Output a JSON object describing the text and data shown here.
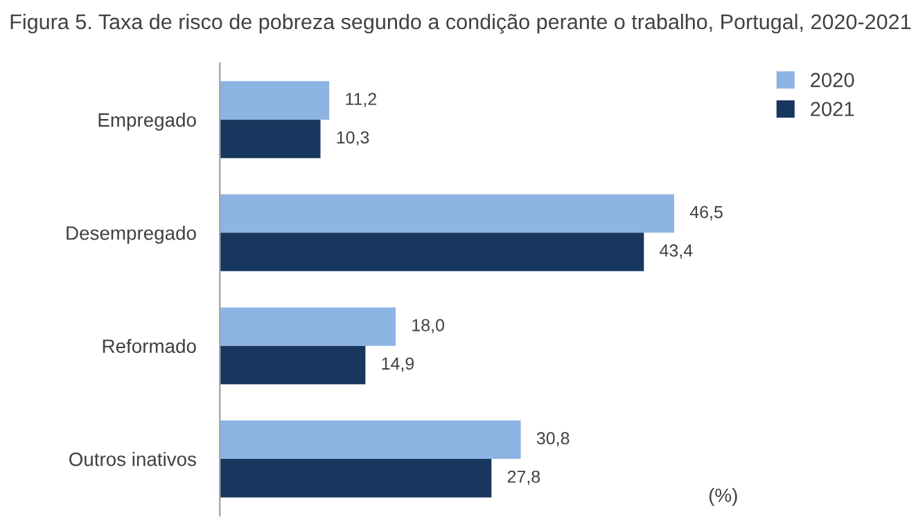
{
  "chart_data": {
    "type": "bar",
    "orientation": "horizontal",
    "title": "Figura 5. Taxa de risco de pobreza segundo a condição perante o trabalho, Portugal, 2020-2021",
    "categories": [
      "Empregado",
      "Desempregado",
      "Reformado",
      "Outros inativos"
    ],
    "series": [
      {
        "name": "2020",
        "color": "#8eb4e3",
        "values": [
          11.2,
          46.5,
          18.0,
          30.8
        ],
        "value_labels": [
          "11,2",
          "46,5",
          "18,0",
          "30,8"
        ]
      },
      {
        "name": "2021",
        "color": "#17375e",
        "values": [
          10.3,
          43.4,
          14.9,
          27.8
        ],
        "value_labels": [
          "10,3",
          "43,4",
          "14,9",
          "27,8"
        ]
      }
    ],
    "tick_labels": "y",
    "grid": false,
    "legend": "top right",
    "annotations": [
      "(%)"
    ]
  }
}
